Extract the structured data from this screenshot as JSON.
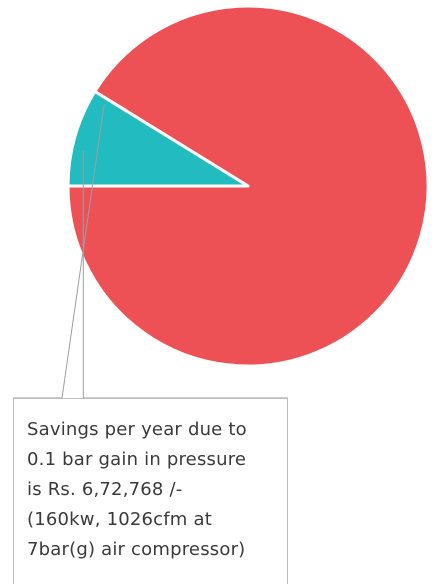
{
  "chart_data": {
    "type": "pie",
    "slices": [
      {
        "label": "",
        "value": 91.2,
        "color": "#ee5155"
      },
      {
        "label": "Savings per year due to 0.1 bar gain in pressure is Rs. 6,72,768 /- (160kw, 1026cfm at 7bar(g) air compressor)",
        "value": 8.8,
        "color": "#22bbbf"
      }
    ],
    "slice_border_color": "#ffffff",
    "leader_line_color": "#9e9e9e",
    "annotation": {
      "lines": [
        "Savings per year due to",
        "0.1 bar gain in pressure",
        "is Rs. 6,72,768 /-",
        "(160kw, 1026cfm at",
        "7bar(g) air compressor)"
      ]
    }
  }
}
